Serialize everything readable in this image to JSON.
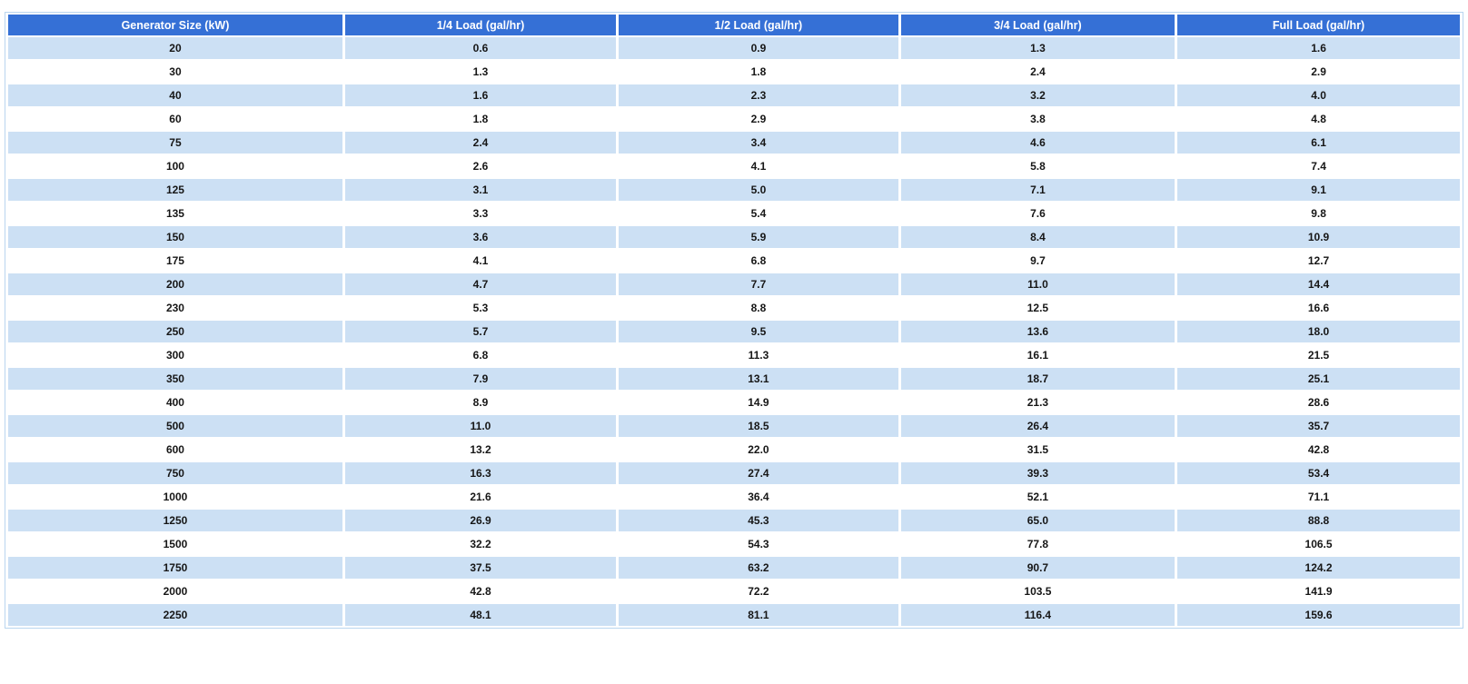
{
  "chart_data": {
    "type": "table",
    "headers": [
      "Generator Size (kW)",
      "1/4 Load (gal/hr)",
      "1/2 Load (gal/hr)",
      "3/4 Load (gal/hr)",
      "Full Load (gal/hr)"
    ],
    "rows": [
      [
        "20",
        "0.6",
        "0.9",
        "1.3",
        "1.6"
      ],
      [
        "30",
        "1.3",
        "1.8",
        "2.4",
        "2.9"
      ],
      [
        "40",
        "1.6",
        "2.3",
        "3.2",
        "4.0"
      ],
      [
        "60",
        "1.8",
        "2.9",
        "3.8",
        "4.8"
      ],
      [
        "75",
        "2.4",
        "3.4",
        "4.6",
        "6.1"
      ],
      [
        "100",
        "2.6",
        "4.1",
        "5.8",
        "7.4"
      ],
      [
        "125",
        "3.1",
        "5.0",
        "7.1",
        "9.1"
      ],
      [
        "135",
        "3.3",
        "5.4",
        "7.6",
        "9.8"
      ],
      [
        "150",
        "3.6",
        "5.9",
        "8.4",
        "10.9"
      ],
      [
        "175",
        "4.1",
        "6.8",
        "9.7",
        "12.7"
      ],
      [
        "200",
        "4.7",
        "7.7",
        "11.0",
        "14.4"
      ],
      [
        "230",
        "5.3",
        "8.8",
        "12.5",
        "16.6"
      ],
      [
        "250",
        "5.7",
        "9.5",
        "13.6",
        "18.0"
      ],
      [
        "300",
        "6.8",
        "11.3",
        "16.1",
        "21.5"
      ],
      [
        "350",
        "7.9",
        "13.1",
        "18.7",
        "25.1"
      ],
      [
        "400",
        "8.9",
        "14.9",
        "21.3",
        "28.6"
      ],
      [
        "500",
        "11.0",
        "18.5",
        "26.4",
        "35.7"
      ],
      [
        "600",
        "13.2",
        "22.0",
        "31.5",
        "42.8"
      ],
      [
        "750",
        "16.3",
        "27.4",
        "39.3",
        "53.4"
      ],
      [
        "1000",
        "21.6",
        "36.4",
        "52.1",
        "71.1"
      ],
      [
        "1250",
        "26.9",
        "45.3",
        "65.0",
        "88.8"
      ],
      [
        "1500",
        "32.2",
        "54.3",
        "77.8",
        "106.5"
      ],
      [
        "1750",
        "37.5",
        "63.2",
        "90.7",
        "124.2"
      ],
      [
        "2000",
        "42.8",
        "72.2",
        "103.5",
        "141.9"
      ],
      [
        "2250",
        "48.1",
        "81.1",
        "116.4",
        "159.6"
      ]
    ]
  },
  "colors": {
    "header_bg": "#3570d6",
    "header_text": "#ffffff",
    "row_alt_bg": "#cce0f4",
    "row_bg": "#ffffff",
    "border": "#b9d5ef",
    "cell_text": "#161616"
  }
}
